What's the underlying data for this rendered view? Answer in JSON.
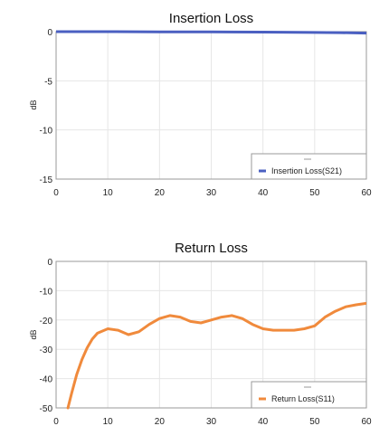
{
  "chart_data": [
    {
      "type": "line",
      "title": "Insertion Loss",
      "xlabel": "",
      "ylabel": "dB",
      "xlim": [
        0,
        60
      ],
      "ylim": [
        -15,
        0
      ],
      "xticks": [
        0,
        10,
        20,
        30,
        40,
        50,
        60
      ],
      "yticks": [
        0,
        -5,
        -10,
        -15
      ],
      "grid": true,
      "legend": "bottom-right",
      "series": [
        {
          "name": "Insertion Loss(S21)",
          "color": "#4a5fc1",
          "x": [
            0,
            10,
            20,
            30,
            40,
            50,
            55,
            60
          ],
          "y": [
            0.0,
            0.0,
            -0.02,
            -0.03,
            -0.05,
            -0.08,
            -0.1,
            -0.15
          ]
        }
      ]
    },
    {
      "type": "line",
      "title": "Return Loss",
      "xlabel": "",
      "ylabel": "dB",
      "xlim": [
        0,
        60
      ],
      "ylim": [
        -50,
        0
      ],
      "xticks": [
        0,
        10,
        20,
        30,
        40,
        50,
        60
      ],
      "yticks": [
        0,
        -10,
        -20,
        -30,
        -40,
        -50
      ],
      "grid": true,
      "legend": "bottom-right",
      "series": [
        {
          "name": "Return Loss(S11)",
          "color": "#f08a3c",
          "x": [
            2.3,
            3,
            4,
            5,
            6,
            7,
            8,
            10,
            12,
            14,
            16,
            18,
            20,
            22,
            24,
            26,
            28,
            30,
            32,
            34,
            36,
            38,
            40,
            42,
            44,
            46,
            48,
            50,
            52,
            54,
            56,
            58,
            60
          ],
          "y": [
            -50,
            -45,
            -38.5,
            -33.5,
            -29.5,
            -26.5,
            -24.5,
            -23,
            -23.5,
            -25,
            -24,
            -21.5,
            -19.5,
            -18.5,
            -19,
            -20.5,
            -21,
            -20,
            -19,
            -18.5,
            -19.5,
            -21.5,
            -23,
            -23.5,
            -23.5,
            -23.5,
            -23,
            -22,
            -19,
            -17,
            -15.5,
            -14.8,
            -14.3
          ]
        }
      ]
    }
  ]
}
